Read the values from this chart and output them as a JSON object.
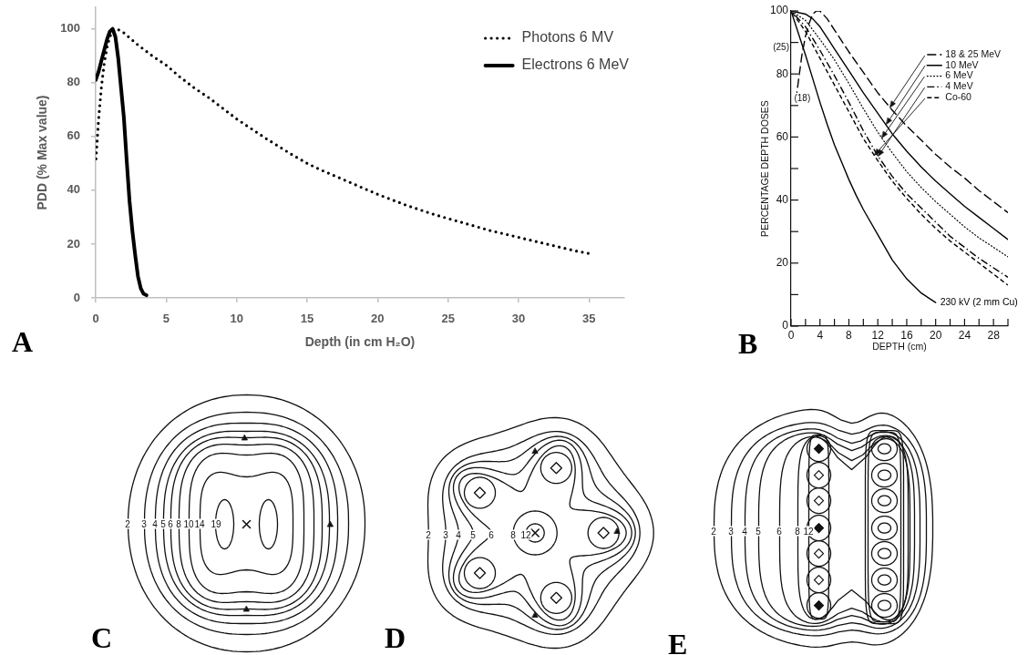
{
  "chart_data": [
    {
      "type": "line",
      "title": "A",
      "xlabel": "Depth (in cm H₂O)",
      "ylabel": "PDD (% Max value)",
      "xlim": [
        0,
        37.5
      ],
      "xticks": [
        0,
        5,
        10,
        15,
        20,
        25,
        30,
        35
      ],
      "ylim": [
        0,
        108
      ],
      "yticks": [
        0,
        20,
        40,
        60,
        80,
        100
      ],
      "legend": "top right",
      "series": [
        {
          "name": "Photons 6 MV",
          "color": "#000000",
          "line_style": "dotted",
          "x": [
            0,
            0.2,
            0.4,
            0.6,
            0.8,
            1,
            1.2,
            1.5,
            2,
            3,
            4,
            5,
            6,
            7,
            8,
            9,
            10,
            12,
            14,
            15,
            16,
            18,
            20,
            22,
            24,
            26,
            28,
            30,
            32,
            34,
            35
          ],
          "values": [
            50,
            66,
            78,
            87,
            93,
            97,
            99,
            100,
            98.5,
            94,
            90,
            86.5,
            82,
            78,
            74.5,
            70.5,
            66.5,
            59.5,
            53,
            50,
            47.5,
            43,
            38.5,
            34.5,
            31,
            28,
            25,
            22.5,
            20,
            17.5,
            16.5
          ]
        },
        {
          "name": "Electrons 6 MeV",
          "color": "#000000",
          "line_style": "solid",
          "x": [
            0,
            0.2,
            0.4,
            0.6,
            0.8,
            1,
            1.2,
            1.4,
            1.6,
            1.8,
            2,
            2.2,
            2.4,
            2.6,
            2.8,
            3,
            3.2,
            3.4,
            3.6
          ],
          "values": [
            81,
            84,
            88,
            92,
            96,
            99,
            100,
            97,
            89,
            78,
            67,
            51,
            36,
            25,
            16,
            8,
            3.5,
            1.5,
            1
          ]
        }
      ]
    },
    {
      "type": "line",
      "title": "B",
      "xlabel": "DEPTH (cm)",
      "ylabel": "PERCENTAGE DEPTH DOSES",
      "xlim": [
        0,
        30
      ],
      "xticks": [
        0,
        {
          "value": 2,
          "label": null
        },
        4,
        {
          "value": 6,
          "label": null
        },
        8,
        {
          "value": 10,
          "label": null
        },
        12,
        {
          "value": 14,
          "label": null
        },
        16,
        {
          "value": 18,
          "label": null
        },
        20,
        {
          "value": 22,
          "label": null
        },
        24,
        {
          "value": 26,
          "label": null
        },
        28,
        {
          "value": 30,
          "label": null
        }
      ],
      "ylim": [
        0,
        100
      ],
      "yticks": [
        0,
        {
          "value": 10,
          "label": null
        },
        20,
        {
          "value": 30,
          "label": null
        },
        40,
        {
          "value": 50,
          "label": null
        },
        60,
        {
          "value": 70,
          "label": null
        },
        80,
        {
          "value": 90,
          "label": null
        },
        100
      ],
      "legend": "top right",
      "annotations": [
        {
          "text": "(25)",
          "x": 1.4,
          "y": 90
        },
        {
          "text": "(18)",
          "x": 0.8,
          "y": 74
        }
      ],
      "series": [
        {
          "name": "18 & 25 MeV",
          "color": "#000000",
          "line_style": "dashed",
          "x": [
            0.8,
            1.5,
            2,
            2.5,
            3,
            3.5,
            4,
            5,
            6,
            7,
            8,
            10,
            12,
            14,
            16,
            18,
            20,
            22,
            24,
            26,
            28,
            30
          ],
          "values": [
            74,
            86,
            92,
            96,
            99,
            100,
            100,
            97.5,
            94,
            90.5,
            87,
            80.5,
            74,
            68.5,
            63.5,
            59,
            54.5,
            50.5,
            47,
            43,
            39.5,
            36
          ]
        },
        {
          "name": "10 MeV",
          "color": "#000000",
          "line_style": "solid",
          "x": [
            0,
            2,
            3,
            4,
            5,
            6,
            8,
            10,
            12,
            14,
            16,
            18,
            20,
            22,
            24,
            26,
            28,
            30
          ],
          "values": [
            100,
            99,
            97.5,
            95,
            91.5,
            88,
            81,
            74,
            67.5,
            61,
            55.5,
            50.5,
            46,
            42,
            38,
            34.5,
            31,
            27.5
          ]
        },
        {
          "name": "6 MeV",
          "color": "#000000",
          "line_style": "dotted",
          "x": [
            0,
            2,
            4,
            6,
            8,
            10,
            12,
            14,
            16,
            18,
            20,
            22,
            24,
            26,
            28,
            30
          ],
          "values": [
            100,
            97,
            91,
            84.5,
            77,
            69,
            61.5,
            55,
            49,
            44,
            39.5,
            35.5,
            31.5,
            28,
            25,
            22
          ]
        },
        {
          "name": "4 MeV",
          "color": "#000000",
          "line_style": "dashed",
          "x": [
            0,
            2,
            4,
            6,
            8,
            10,
            12,
            14,
            16,
            18,
            20,
            22,
            24,
            26,
            28,
            30
          ],
          "values": [
            100,
            95,
            87.5,
            79.5,
            71,
            62,
            54,
            47.5,
            42,
            37.5,
            33,
            28.5,
            25,
            21.5,
            18.5,
            15.5
          ]
        },
        {
          "name": "Co-60",
          "color": "#000000",
          "line_style": "dashed",
          "x": [
            0,
            2,
            4,
            6,
            8,
            10,
            12,
            14,
            16,
            18,
            20,
            22,
            24,
            26,
            28,
            30
          ],
          "values": [
            100,
            93.5,
            85,
            76.5,
            68,
            59.5,
            52.5,
            46,
            40.5,
            35.5,
            31,
            27,
            23.5,
            20,
            16.5,
            13
          ]
        },
        {
          "name": "230 kV (2 mm Cu)",
          "color": "#000000",
          "line_style": "solid",
          "x": [
            0,
            1,
            2,
            3,
            4,
            5,
            6,
            7,
            8,
            9,
            10,
            12,
            14,
            16,
            18,
            20
          ],
          "values": [
            100,
            93,
            86,
            78.5,
            71,
            64,
            57.5,
            52,
            46.5,
            41.5,
            37,
            29,
            21,
            15,
            10.5,
            7.5
          ]
        }
      ]
    },
    {
      "type": "other",
      "title": "C",
      "annotations": [
        "2",
        "3",
        "4",
        "5",
        "6",
        "8",
        "10",
        "14",
        "19"
      ]
    },
    {
      "type": "other",
      "title": "D",
      "annotations": [
        "2",
        "3",
        "4",
        "5",
        "6",
        "8",
        "12"
      ]
    },
    {
      "type": "other",
      "title": "E",
      "annotations": [
        "2",
        "3",
        "4",
        "5",
        "6",
        "8",
        "12"
      ]
    }
  ]
}
